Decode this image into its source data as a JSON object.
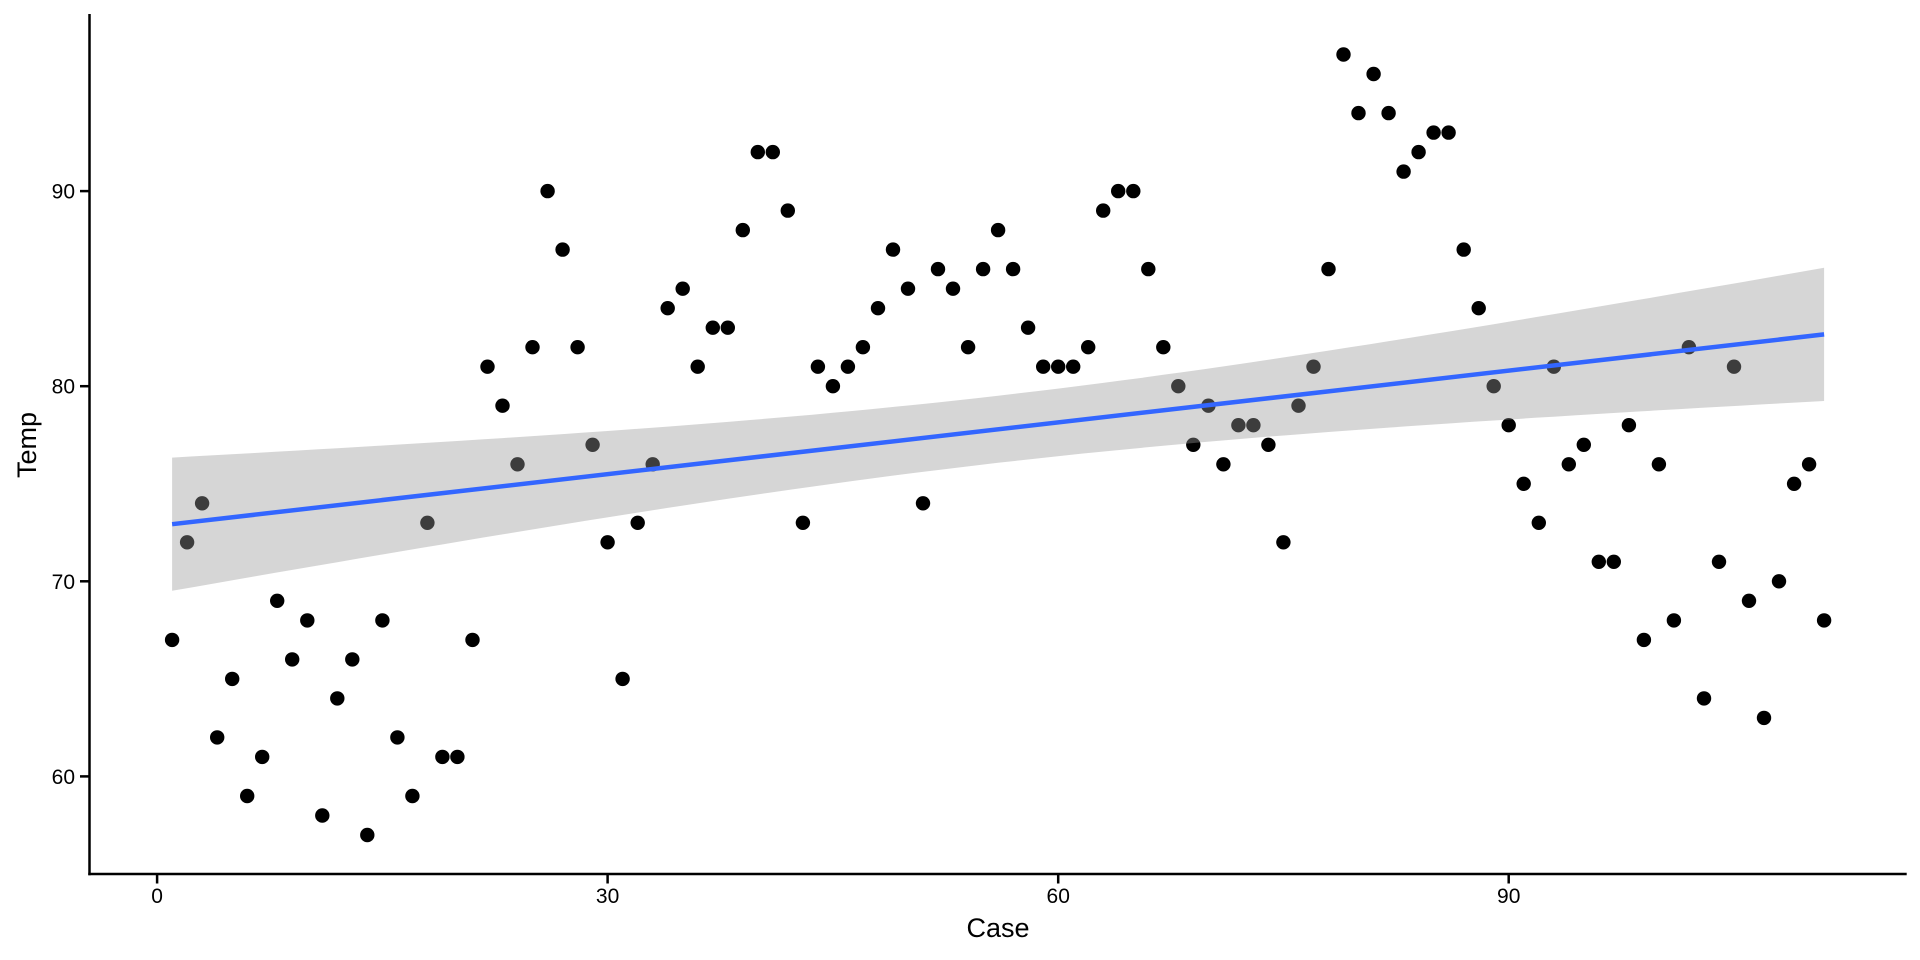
{
  "page": {
    "background_color": "#FFFFFF"
  },
  "chart_data": {
    "type": "scatter",
    "title": "",
    "xlabel": "Case",
    "ylabel": "Temp",
    "x_ticks": [
      0,
      30,
      60,
      90
    ],
    "y_ticks": [
      60,
      70,
      80,
      90
    ],
    "xlim": [
      -4.5,
      116.5
    ],
    "ylim": [
      55,
      99
    ],
    "grid": false,
    "legend": "none",
    "point_color": "#000000",
    "axis_color": "#000000",
    "tick_label_color": "#000000",
    "smooth": {
      "method": "lm",
      "level": 0.95,
      "line_color": "#3366FF",
      "band_fill": "#999999",
      "band_opacity": 0.4
    },
    "x": [
      1,
      2,
      3,
      4,
      5,
      6,
      7,
      8,
      9,
      10,
      11,
      12,
      13,
      14,
      15,
      16,
      17,
      18,
      19,
      20,
      21,
      22,
      23,
      24,
      25,
      26,
      27,
      28,
      29,
      30,
      31,
      32,
      33,
      34,
      35,
      36,
      37,
      38,
      39,
      40,
      41,
      42,
      43,
      44,
      45,
      46,
      47,
      48,
      49,
      50,
      51,
      52,
      53,
      54,
      55,
      56,
      57,
      58,
      59,
      60,
      61,
      62,
      63,
      64,
      65,
      66,
      67,
      68,
      69,
      70,
      71,
      72,
      73,
      74,
      75,
      76,
      77,
      78,
      79,
      80,
      81,
      82,
      83,
      84,
      85,
      86,
      87,
      88,
      89,
      90,
      91,
      92,
      93,
      94,
      95,
      96,
      97,
      98,
      99,
      100,
      101,
      102,
      103,
      104,
      105,
      106,
      107,
      108,
      109,
      110,
      111
    ],
    "y": [
      67,
      72,
      74,
      62,
      65,
      59,
      61,
      69,
      66,
      68,
      58,
      64,
      66,
      57,
      68,
      62,
      59,
      73,
      61,
      61,
      67,
      81,
      79,
      76,
      82,
      90,
      87,
      82,
      77,
      72,
      65,
      73,
      76,
      84,
      85,
      81,
      83,
      83,
      88,
      92,
      92,
      89,
      73,
      81,
      80,
      81,
      82,
      84,
      87,
      85,
      74,
      86,
      85,
      82,
      86,
      88,
      86,
      83,
      81,
      81,
      81,
      82,
      89,
      90,
      90,
      86,
      82,
      80,
      77,
      79,
      76,
      78,
      78,
      77,
      72,
      79,
      81,
      86,
      97,
      94,
      96,
      94,
      91,
      92,
      93,
      93,
      87,
      84,
      80,
      78,
      75,
      73,
      81,
      76,
      77,
      71,
      71,
      78,
      67,
      76,
      68,
      82,
      64,
      71,
      81,
      69,
      63,
      70,
      75,
      76,
      68
    ]
  }
}
